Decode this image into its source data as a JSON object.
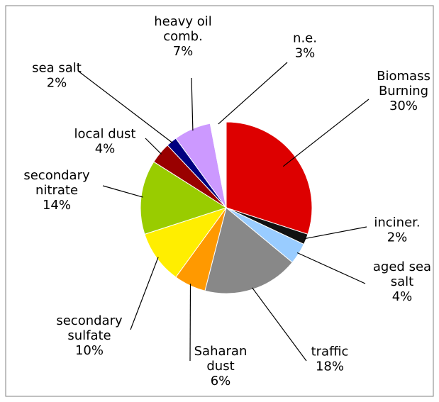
{
  "chart_data": {
    "type": "pie",
    "title": "",
    "slices": [
      {
        "label_lines": [
          "Biomass",
          "Burning",
          "30%"
        ],
        "value": 30,
        "color": "#dd0000"
      },
      {
        "label_lines": [
          "inciner.",
          "2%"
        ],
        "value": 2,
        "color": "#111111"
      },
      {
        "label_lines": [
          "aged sea",
          "salt",
          "4%"
        ],
        "value": 4,
        "color": "#99ccff"
      },
      {
        "label_lines": [
          "traffic",
          "18%"
        ],
        "value": 18,
        "color": "#888888"
      },
      {
        "label_lines": [
          "Saharan",
          "dust",
          "6%"
        ],
        "value": 6,
        "color": "#ff9900"
      },
      {
        "label_lines": [
          "secondary",
          "sulfate",
          "10%"
        ],
        "value": 10,
        "color": "#ffee00"
      },
      {
        "label_lines": [
          "secondary",
          "nitrate",
          "14%"
        ],
        "value": 14,
        "color": "#99cc00"
      },
      {
        "label_lines": [
          "local dust",
          "4%"
        ],
        "value": 4,
        "color": "#990000"
      },
      {
        "label_lines": [
          "sea salt",
          "2%"
        ],
        "value": 2,
        "color": "#000080"
      },
      {
        "label_lines": [
          "heavy oil",
          "comb.",
          "7%"
        ],
        "value": 7,
        "color": "#cc99ff"
      },
      {
        "label_lines": [
          "n.e.",
          "3%"
        ],
        "value": 3,
        "color": "#ffffff"
      }
    ],
    "start_angle_deg": 0,
    "direction": "clockwise",
    "legend": "none",
    "border_color": "#808080"
  }
}
